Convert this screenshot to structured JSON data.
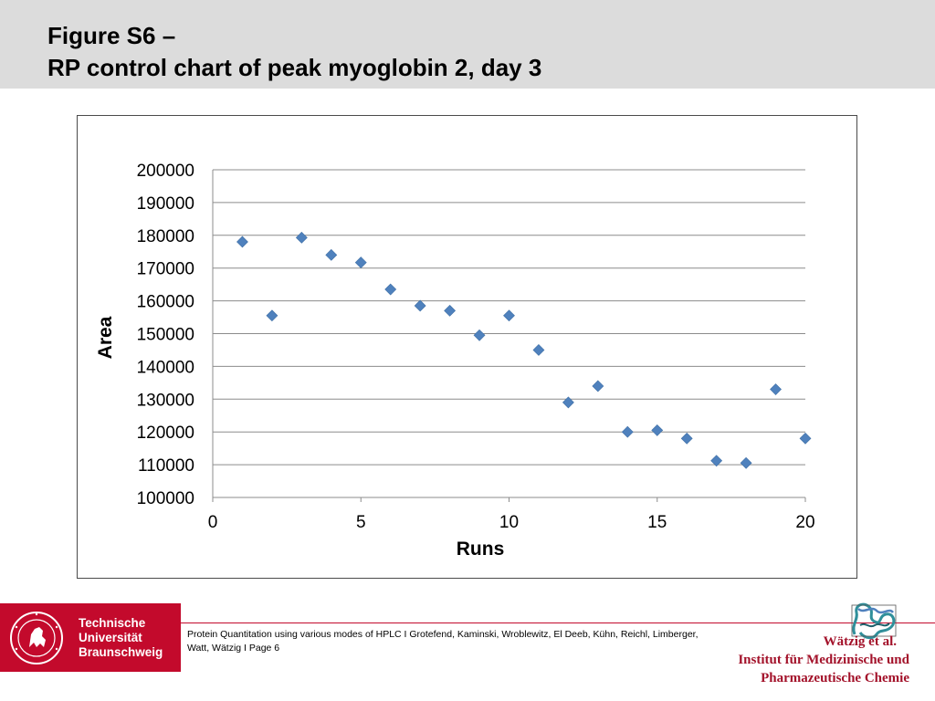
{
  "header": {
    "title_line1": "Figure S6 –",
    "title_line2": "RP control chart of peak myoglobin 2, day 3"
  },
  "chart_data": {
    "type": "scatter",
    "title": "",
    "xlabel": "Runs",
    "ylabel": "Area",
    "xlim": [
      0,
      20
    ],
    "ylim": [
      100000,
      200000
    ],
    "xticks": [
      0,
      5,
      10,
      15,
      20
    ],
    "yticks": [
      100000,
      110000,
      120000,
      130000,
      140000,
      150000,
      160000,
      170000,
      180000,
      190000,
      200000
    ],
    "grid": "horizontal",
    "marker": "diamond",
    "marker_color": "#4f81bd",
    "x": [
      1,
      2,
      3,
      4,
      5,
      6,
      7,
      8,
      9,
      10,
      11,
      12,
      13,
      14,
      15,
      16,
      17,
      18,
      19,
      20
    ],
    "y": [
      178000,
      155500,
      179300,
      174000,
      171700,
      163500,
      158500,
      157000,
      149500,
      155500,
      145000,
      129000,
      134000,
      120000,
      120500,
      118000,
      111200,
      110500,
      133000,
      118000
    ]
  },
  "footer": {
    "logo": {
      "line1": "Technische",
      "line2": "Universität",
      "line3": "Braunschweig",
      "seal_icon": "tu-braunschweig-lion-seal-icon",
      "brand_color": "#c30a2c"
    },
    "citation": "Protein Quantitation using various modes of HPLC I Grotefend, Kaminski, Wroblewitz, El Deeb, Kühn, Reichl, Limberger, Watt, Wätzig I Page 6",
    "institute": {
      "author": "Wätzig et al.",
      "line1": "Institut für Medizinische und",
      "line2": "Pharmazeutische Chemie",
      "color": "#a3122a",
      "protein_icon": "protein-structure-icon"
    }
  }
}
